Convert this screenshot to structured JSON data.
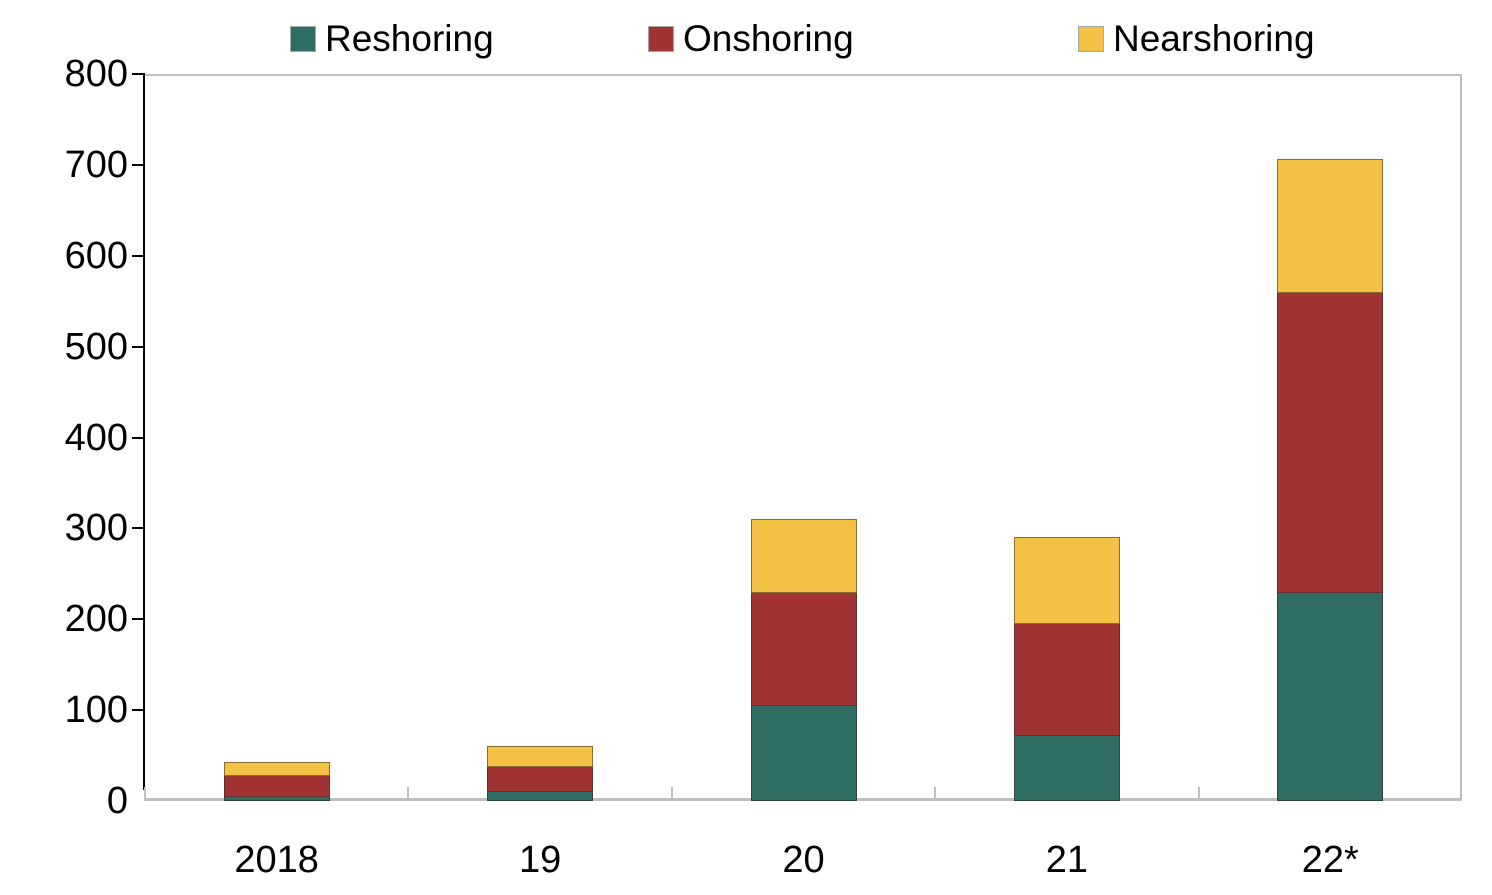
{
  "chart_data": {
    "type": "bar",
    "stacked": true,
    "categories": [
      "2018",
      "19",
      "20",
      "21",
      "22*"
    ],
    "series": [
      {
        "name": "Reshoring",
        "color": "#2F6C63",
        "values": [
          4,
          10,
          105,
          72,
          229
        ]
      },
      {
        "name": "Onshoring",
        "color": "#A23333",
        "values": [
          23,
          27,
          124,
          123,
          330
        ]
      },
      {
        "name": "Nearshoring",
        "color": "#F3C144",
        "values": [
          16,
          24,
          81,
          95,
          148
        ]
      }
    ],
    "totals": [
      43,
      61,
      310,
      290,
      707
    ],
    "title": "",
    "xlabel": "",
    "ylabel": "",
    "ylim": [
      0,
      800
    ],
    "yticks": [
      0,
      100,
      200,
      300,
      400,
      500,
      600,
      700,
      800
    ],
    "grid": false,
    "legend_position": "top"
  },
  "colors": {
    "y_axis": "#000000",
    "frame_grey": "#BFBFBF",
    "text": "#000000",
    "background": "#FFFFFF"
  }
}
